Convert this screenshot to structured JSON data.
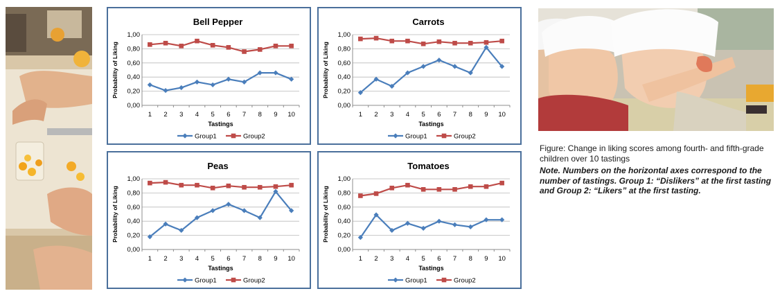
{
  "colors": {
    "group1": "#4a7ebb",
    "group2": "#be4b48",
    "frame": "#4a6f9b",
    "grid": "#b9b9b9"
  },
  "figure": {
    "caption": "Figure: Change in liking scores among fourth- and fifth-grade children over 10 tastings",
    "note": "Note. Numbers on the horizontal axes correspond to the number of tastings. Group 1: “Dislikers” at the first tasting and Group 2: “Likers” at the first tasting."
  },
  "chart_data": [
    {
      "type": "line",
      "title": "Bell Pepper",
      "xlabel": "Tastings",
      "ylabel": "Probability of Liking",
      "x": [
        1,
        2,
        3,
        4,
        5,
        6,
        7,
        8,
        9,
        10
      ],
      "ylim": [
        0,
        1
      ],
      "yticks": [
        "0,00",
        "0,20",
        "0,40",
        "0,60",
        "0,80",
        "1,00"
      ],
      "grid": true,
      "legend": "bottom",
      "series": [
        {
          "name": "Group1",
          "values": [
            0.29,
            0.21,
            0.25,
            0.33,
            0.29,
            0.37,
            0.33,
            0.46,
            0.46,
            0.37
          ]
        },
        {
          "name": "Group2",
          "values": [
            0.86,
            0.88,
            0.84,
            0.91,
            0.85,
            0.82,
            0.76,
            0.79,
            0.84,
            0.84
          ]
        }
      ]
    },
    {
      "type": "line",
      "title": "Carrots",
      "xlabel": "Tastings",
      "ylabel": "Probability of Liking",
      "x": [
        1,
        2,
        3,
        4,
        5,
        6,
        7,
        8,
        9,
        10
      ],
      "ylim": [
        0,
        1
      ],
      "yticks": [
        "0,00",
        "0,20",
        "0,40",
        "0,60",
        "0,80",
        "1,00"
      ],
      "grid": true,
      "legend": "bottom",
      "series": [
        {
          "name": "Group1",
          "values": [
            0.18,
            0.37,
            0.27,
            0.46,
            0.55,
            0.64,
            0.55,
            0.46,
            0.82,
            0.55
          ]
        },
        {
          "name": "Group2",
          "values": [
            0.94,
            0.95,
            0.91,
            0.91,
            0.87,
            0.9,
            0.88,
            0.88,
            0.89,
            0.91
          ]
        }
      ]
    },
    {
      "type": "line",
      "title": "Peas",
      "xlabel": "Tastings",
      "ylabel": "Probability of Liking",
      "x": [
        1,
        2,
        3,
        4,
        5,
        6,
        7,
        8,
        9,
        10
      ],
      "ylim": [
        0,
        1
      ],
      "yticks": [
        "0,00",
        "0,20",
        "0,40",
        "0,60",
        "0,80",
        "1,00"
      ],
      "grid": true,
      "legend": "bottom",
      "series": [
        {
          "name": "Group1",
          "values": [
            0.18,
            0.36,
            0.27,
            0.45,
            0.55,
            0.64,
            0.55,
            0.45,
            0.82,
            0.55
          ]
        },
        {
          "name": "Group2",
          "values": [
            0.94,
            0.95,
            0.91,
            0.91,
            0.87,
            0.9,
            0.88,
            0.88,
            0.89,
            0.91
          ]
        }
      ]
    },
    {
      "type": "line",
      "title": "Tomatoes",
      "xlabel": "Tastings",
      "ylabel": "Probability of Liking",
      "x": [
        1,
        2,
        3,
        4,
        5,
        6,
        7,
        8,
        9,
        10
      ],
      "ylim": [
        0,
        1
      ],
      "yticks": [
        "0,00",
        "0,20",
        "0,40",
        "0,60",
        "0,80",
        "1,00"
      ],
      "grid": true,
      "legend": "bottom",
      "series": [
        {
          "name": "Group1",
          "values": [
            0.17,
            0.49,
            0.27,
            0.37,
            0.3,
            0.4,
            0.35,
            0.32,
            0.42,
            0.42
          ]
        },
        {
          "name": "Group2",
          "values": [
            0.76,
            0.79,
            0.87,
            0.91,
            0.85,
            0.85,
            0.85,
            0.89,
            0.89,
            0.94
          ]
        }
      ]
    }
  ]
}
